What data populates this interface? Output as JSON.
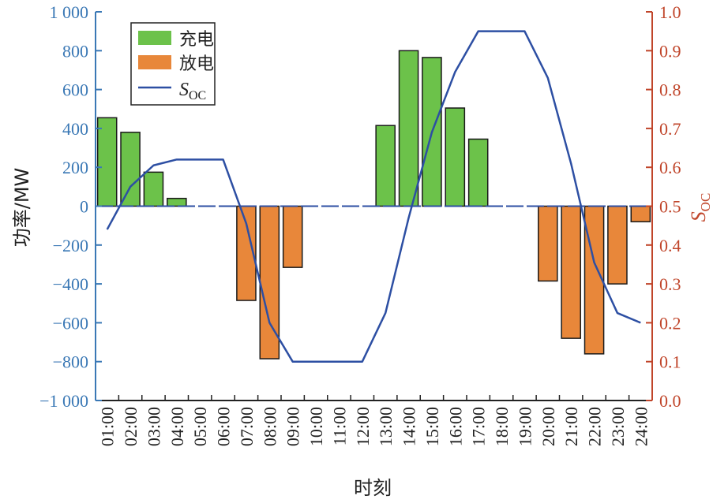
{
  "chart_data": {
    "type": "bar",
    "categories": [
      "01:00",
      "02:00",
      "03:00",
      "04:00",
      "05:00",
      "06:00",
      "07:00",
      "08:00",
      "09:00",
      "10:00",
      "11:00",
      "12:00",
      "13:00",
      "14:00",
      "15:00",
      "16:00",
      "17:00",
      "18:00",
      "19:00",
      "20:00",
      "21:00",
      "22:00",
      "23:00",
      "24:00"
    ],
    "series": [
      {
        "name": "充电",
        "axis": "left",
        "color": "#6cc24a",
        "values": [
          455,
          380,
          175,
          40,
          0,
          0,
          0,
          0,
          0,
          0,
          0,
          0,
          415,
          800,
          765,
          505,
          345,
          0,
          0,
          0,
          0,
          0,
          0,
          0
        ]
      },
      {
        "name": "放电",
        "axis": "left",
        "color": "#e8873a",
        "values": [
          0,
          0,
          0,
          0,
          0,
          0,
          -485,
          -785,
          -315,
          0,
          0,
          0,
          0,
          0,
          0,
          0,
          0,
          0,
          0,
          -385,
          -680,
          -760,
          -400,
          -80
        ]
      },
      {
        "name": "S",
        "name_sub": "OC",
        "axis": "right",
        "type": "line",
        "color": "#2d4fa3",
        "values": [
          0.44,
          0.55,
          0.605,
          0.62,
          0.62,
          0.62,
          0.455,
          0.2,
          0.1,
          0.1,
          0.1,
          0.1,
          0.225,
          0.47,
          0.69,
          0.845,
          0.95,
          0.95,
          0.95,
          0.83,
          0.61,
          0.355,
          0.225,
          0.2
        ]
      }
    ],
    "xlabel": "时刻",
    "ylabel": "功率/MW",
    "ylabel_right": "S",
    "ylabel_right_sub": "OC",
    "ylim": [
      -1000,
      1000
    ],
    "ylim_right": [
      0,
      1.0
    ],
    "yticks": [
      "−1 000",
      "−800",
      "−600",
      "−400",
      "−200",
      "0",
      "200",
      "400",
      "600",
      "800",
      "1 000"
    ],
    "yticks_right": [
      "0.0",
      "0.1",
      "0.2",
      "0.3",
      "0.4",
      "0.5",
      "0.6",
      "0.7",
      "0.8",
      "0.9",
      "1.0"
    ],
    "grid": false,
    "legend": "top-left",
    "colors": {
      "left_axis": "#3a78b5",
      "right_axis": "#c0452a",
      "zero_line": "#2d4fa3"
    }
  }
}
